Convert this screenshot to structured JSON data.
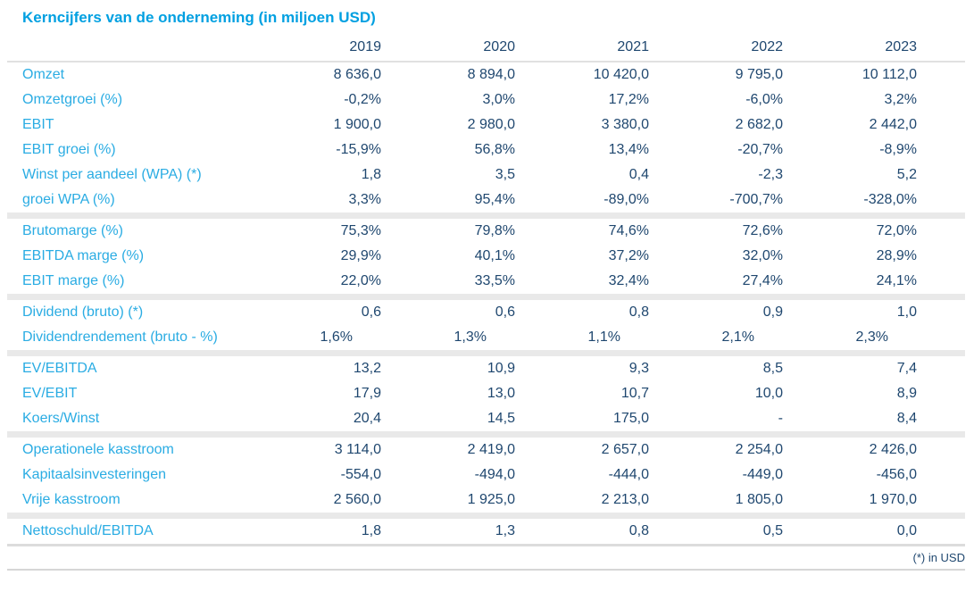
{
  "title": "Kerncijfers van de onderneming (in miljoen USD)",
  "footnote": "(*) in USD",
  "colors": {
    "title": "#00a0e1",
    "row_label": "#2aace3",
    "value_text": "#1f476f",
    "section_band": "#e9e9e9",
    "rule_line": "#c9c9c9"
  },
  "chart_data": {
    "type": "table",
    "title": "Kerncijfers van de onderneming (in miljoen USD)",
    "columns": [
      "2019",
      "2020",
      "2021",
      "2022",
      "2023"
    ],
    "sections": [
      {
        "rows": [
          {
            "label": "Omzet",
            "values": [
              "8 636,0",
              "8 894,0",
              "10 420,0",
              "9 795,0",
              "10 112,0"
            ]
          },
          {
            "label": "Omzetgroei (%)",
            "values": [
              "-0,2%",
              "3,0%",
              "17,2%",
              "-6,0%",
              "3,2%"
            ]
          },
          {
            "label": "EBIT",
            "values": [
              "1 900,0",
              "2 980,0",
              "3 380,0",
              "2 682,0",
              "2 442,0"
            ]
          },
          {
            "label": "EBIT groei (%)",
            "values": [
              "-15,9%",
              "56,8%",
              "13,4%",
              "-20,7%",
              "-8,9%"
            ]
          },
          {
            "label": "Winst per aandeel (WPA) (*)",
            "values": [
              "1,8",
              "3,5",
              "0,4",
              "-2,3",
              "5,2"
            ]
          },
          {
            "label": "groei WPA (%)",
            "values": [
              "3,3%",
              "95,4%",
              "-89,0%",
              "-700,7%",
              "-328,0%"
            ]
          }
        ]
      },
      {
        "rows": [
          {
            "label": "Brutomarge (%)",
            "values": [
              "75,3%",
              "79,8%",
              "74,6%",
              "72,6%",
              "72,0%"
            ]
          },
          {
            "label": "EBITDA marge (%)",
            "values": [
              "29,9%",
              "40,1%",
              "37,2%",
              "32,0%",
              "28,9%"
            ]
          },
          {
            "label": "EBIT marge (%)",
            "values": [
              "22,0%",
              "33,5%",
              "32,4%",
              "27,4%",
              "24,1%"
            ]
          }
        ]
      },
      {
        "rows": [
          {
            "label": "Dividend (bruto) (*)",
            "values": [
              "0,6",
              "0,6",
              "0,8",
              "0,9",
              "1,0"
            ]
          },
          {
            "label": "Dividendrendement (bruto - %)",
            "values": [
              "1,6%",
              "1,3%",
              "1,1%",
              "2,1%",
              "2,3%"
            ]
          }
        ]
      },
      {
        "rows": [
          {
            "label": "EV/EBITDA",
            "values": [
              "13,2",
              "10,9",
              "9,3",
              "8,5",
              "7,4"
            ]
          },
          {
            "label": "EV/EBIT",
            "values": [
              "17,9",
              "13,0",
              "10,7",
              "10,0",
              "8,9"
            ]
          },
          {
            "label": "Koers/Winst",
            "values": [
              "20,4",
              "14,5",
              "175,0",
              "-",
              "8,4"
            ]
          }
        ]
      },
      {
        "rows": [
          {
            "label": "Operationele kasstroom",
            "values": [
              "3 114,0",
              "2 419,0",
              "2 657,0",
              "2 254,0",
              "2 426,0"
            ]
          },
          {
            "label": "Kapitaalsinvesteringen",
            "values": [
              "-554,0",
              "-494,0",
              "-444,0",
              "-449,0",
              "-456,0"
            ]
          },
          {
            "label": "Vrije kasstroom",
            "values": [
              "2 560,0",
              "1 925,0",
              "2 213,0",
              "1 805,0",
              "1 970,0"
            ]
          }
        ]
      },
      {
        "rows": [
          {
            "label": "Nettoschuld/EBITDA",
            "values": [
              "1,8",
              "1,3",
              "0,8",
              "0,5",
              "0,0"
            ]
          }
        ]
      }
    ]
  }
}
